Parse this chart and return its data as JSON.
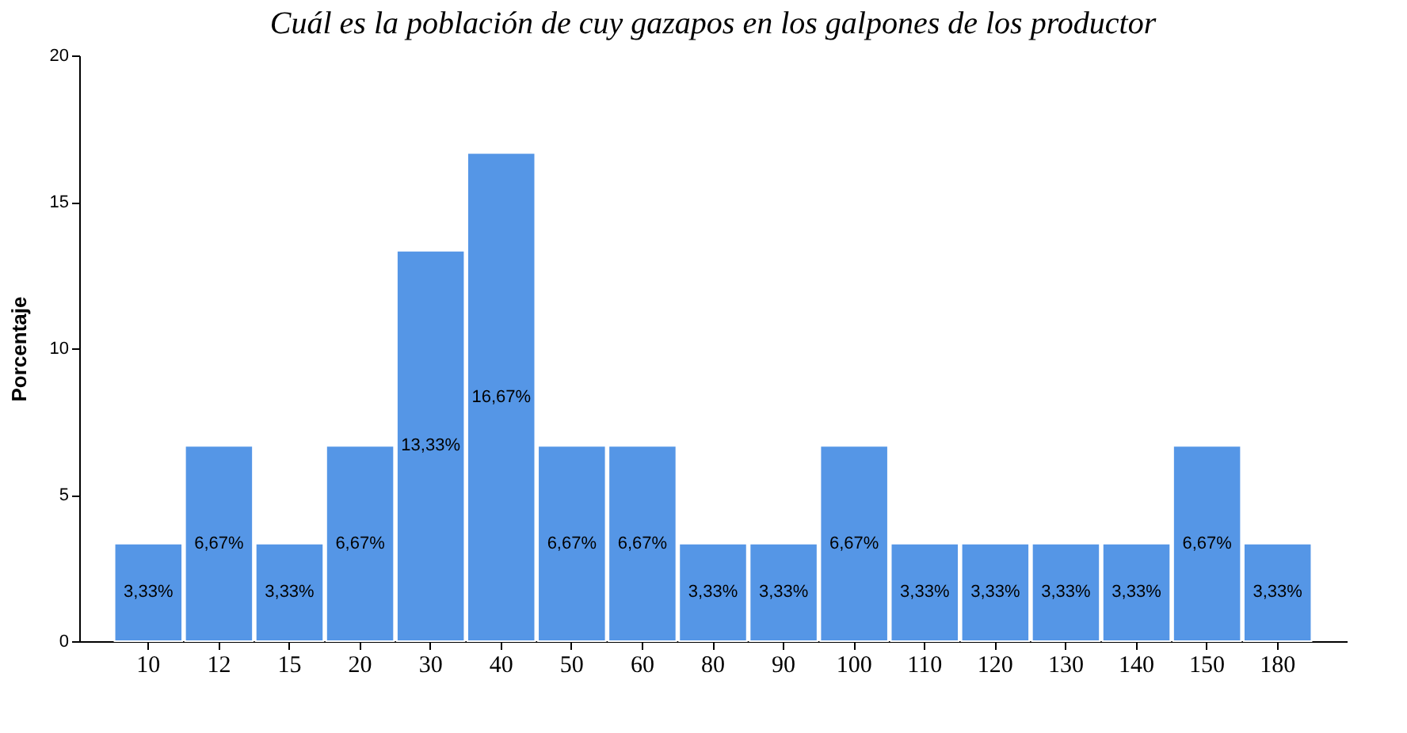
{
  "chart_data": {
    "type": "bar",
    "title": "Cuál es la población de cuy gazapos en los galpones de los productor",
    "ylabel": "Porcentaje",
    "categories": [
      "10",
      "12",
      "15",
      "20",
      "30",
      "40",
      "50",
      "60",
      "80",
      "90",
      "100",
      "110",
      "120",
      "130",
      "140",
      "150",
      "180"
    ],
    "values": [
      3.33,
      6.67,
      3.33,
      6.67,
      13.33,
      16.67,
      6.67,
      6.67,
      3.33,
      3.33,
      6.67,
      3.33,
      3.33,
      3.33,
      3.33,
      6.67,
      3.33
    ],
    "value_labels": [
      "3,33%",
      "6,67%",
      "3,33%",
      "6,67%",
      "13,33%",
      "16,67%",
      "6,67%",
      "6,67%",
      "3,33%",
      "3,33%",
      "6,67%",
      "3,33%",
      "3,33%",
      "3,33%",
      "3,33%",
      "6,67%",
      "3,33%"
    ],
    "color": "#5596e6",
    "ylim": [
      0,
      20
    ],
    "yticks": [
      0,
      5,
      10,
      15,
      20
    ],
    "grid": false
  }
}
